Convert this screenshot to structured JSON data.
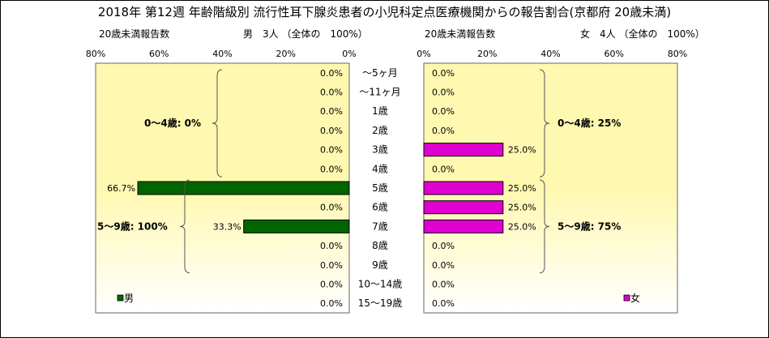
{
  "title": "2018年 第12週 年齢階級別 流行性耳下腺炎患者の小児科定点医療機関からの報告割合(京都府 20歳未満)",
  "left_header": {
    "subtitle": "20歳未満報告数",
    "summary": "男　3人 （全体の　100%）"
  },
  "right_header": {
    "subtitle": "20歳未満報告数",
    "summary": "女　4人 （全体の　100%）"
  },
  "colors": {
    "male": "#006400",
    "female": "#E000D0",
    "plot_top": "#FFF8B0",
    "plot_bottom": "#FFFFFF"
  },
  "chart_data": [
    {
      "type": "bar",
      "orientation": "horizontal",
      "direction": "right-to-left",
      "categories": [
        "～5ヶ月",
        "～11ヶ月",
        "1歳",
        "2歳",
        "3歳",
        "4歳",
        "5歳",
        "6歳",
        "7歳",
        "8歳",
        "9歳",
        "10～14歳",
        "15～19歳"
      ],
      "series": [
        {
          "name": "男",
          "values": [
            0,
            0,
            0,
            0,
            0,
            0,
            66.7,
            0,
            33.3,
            0,
            0,
            0,
            0
          ]
        }
      ],
      "value_labels": [
        "0.0%",
        "0.0%",
        "0.0%",
        "0.0%",
        "0.0%",
        "0.0%",
        "66.7%",
        "0.0%",
        "33.3%",
        "0.0%",
        "0.0%",
        "0.0%",
        "0.0%"
      ],
      "xticks": [
        "80%",
        "60%",
        "40%",
        "20%",
        "0%"
      ],
      "xlim": [
        0,
        80
      ],
      "grid": false,
      "legend": "bottom-left",
      "groups": [
        {
          "label": "0～4歳: 0%"
        },
        {
          "label": "5～9歳: 100%"
        }
      ]
    },
    {
      "type": "bar",
      "orientation": "horizontal",
      "direction": "left-to-right",
      "categories": [
        "～5ヶ月",
        "～11ヶ月",
        "1歳",
        "2歳",
        "3歳",
        "4歳",
        "5歳",
        "6歳",
        "7歳",
        "8歳",
        "9歳",
        "10～14歳",
        "15～19歳"
      ],
      "series": [
        {
          "name": "女",
          "values": [
            0,
            0,
            0,
            0,
            25,
            0,
            25,
            25,
            25,
            0,
            0,
            0,
            0
          ]
        }
      ],
      "value_labels": [
        "0.0%",
        "0.0%",
        "0.0%",
        "0.0%",
        "25.0%",
        "0.0%",
        "25.0%",
        "25.0%",
        "25.0%",
        "0.0%",
        "0.0%",
        "0.0%",
        "0.0%"
      ],
      "xticks": [
        "0%",
        "20%",
        "40%",
        "60%",
        "80%"
      ],
      "xlim": [
        0,
        80
      ],
      "grid": false,
      "legend": "bottom-right",
      "groups": [
        {
          "label": "0～4歳: 25%"
        },
        {
          "label": "5～9歳: 75%"
        }
      ]
    }
  ]
}
